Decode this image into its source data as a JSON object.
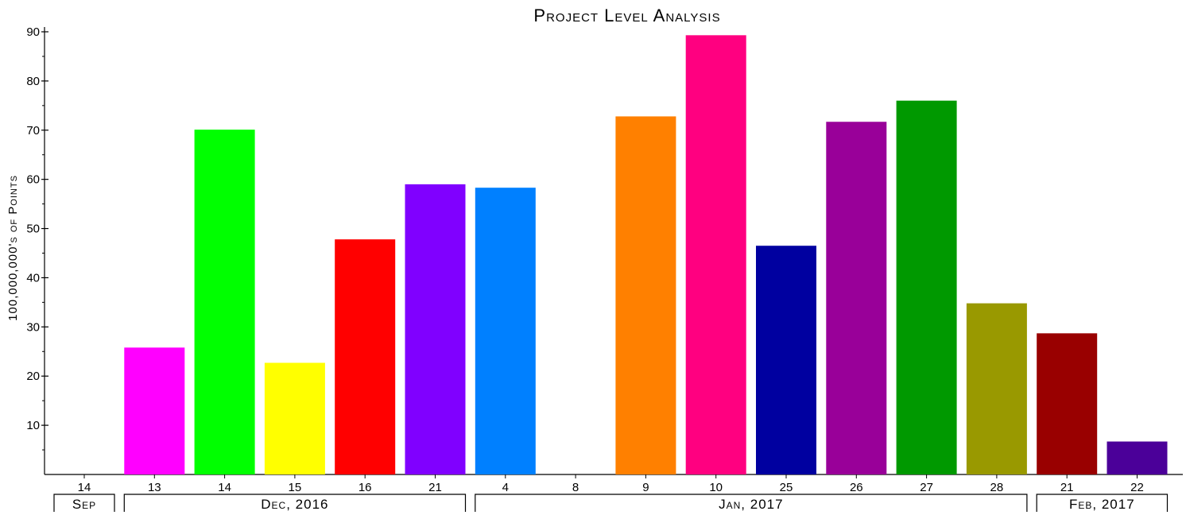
{
  "chart_data": {
    "type": "bar",
    "title": "Project Level Analysis",
    "ylabel": "100,000,000's of Points",
    "xlabel": "",
    "ylim": [
      0,
      90
    ],
    "yticks": [
      10,
      20,
      30,
      40,
      50,
      60,
      70,
      80,
      90
    ],
    "categories": [
      "14",
      "13",
      "14",
      "15",
      "16",
      "21",
      "4",
      "8",
      "9",
      "10",
      "25",
      "26",
      "27",
      "28",
      "21",
      "22"
    ],
    "values": [
      0,
      25.8,
      70.1,
      22.7,
      47.8,
      59.0,
      58.3,
      0,
      72.8,
      89.3,
      46.5,
      71.7,
      76.0,
      34.8,
      28.7,
      6.7
    ],
    "colors": [
      "#ffffff",
      "#ff00ff",
      "#00ff00",
      "#ffff00",
      "#ff0000",
      "#8000ff",
      "#0080ff",
      "#ffffff",
      "#ff8000",
      "#ff0080",
      "#0000a0",
      "#990099",
      "#009900",
      "#999900",
      "#990000",
      "#4b0099"
    ],
    "groups": [
      {
        "label": "Sep",
        "start": 0,
        "end": 0
      },
      {
        "label": "Dec, 2016",
        "start": 1,
        "end": 5
      },
      {
        "label": "Jan, 2017",
        "start": 6,
        "end": 13
      },
      {
        "label": "Feb, 2017",
        "start": 14,
        "end": 15
      }
    ],
    "grid": false
  }
}
